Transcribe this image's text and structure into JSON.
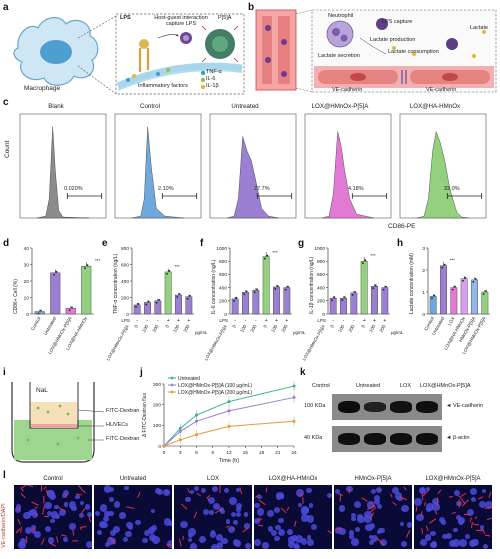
{
  "panels": {
    "a": "a",
    "b": "b",
    "c": "c",
    "d": "d",
    "e": "e",
    "f": "f",
    "g": "g",
    "h": "h",
    "i": "i",
    "j": "j",
    "k": "k",
    "l": "l"
  },
  "panel_a": {
    "cell_label": "Macrophage",
    "interaction_text": "Host-guest interaction capture LPS",
    "lps": "LPS",
    "p5a": "P[5]A",
    "inflammatory": "Inflammatory factors",
    "legend": [
      "TNF-α",
      "IL-6",
      "IL-1β"
    ]
  },
  "panel_b": {
    "lps_capture": "LPS capture",
    "lactate_production": "Lactate production",
    "lactate_consumption": "Lactate consumption",
    "lactate_secretion": "Lactate secretion",
    "lactate": "Lactate",
    "neutrophil": "Neutrophil",
    "vec1": "VE-cadherin",
    "vec2": "VE-cadherin"
  },
  "panel_c": {
    "xlabel": "CD86-PE",
    "ylabel": "Count",
    "groups": [
      {
        "title": "Blank",
        "percent": "0.020%",
        "color": "#8c8c8c"
      },
      {
        "title": "Control",
        "percent": "2.10%",
        "color": "#6fa8dc"
      },
      {
        "title": "Untreated",
        "percent": "27.7%",
        "color": "#9b7fd1"
      },
      {
        "title": "LOX@HMnOx-P[5]A",
        "percent": "4.18%",
        "color": "#e27ad5"
      },
      {
        "title": "LOX@HA-HMnOx",
        "percent": "33.0%",
        "color": "#93d17f"
      }
    ]
  },
  "chart_data": [
    {
      "type": "bar",
      "panel": "d",
      "categories": [
        "Control",
        "Untreated",
        "LOX@HMnOx-P[5]A",
        "LOX@HA-HMnOx"
      ],
      "values": [
        1.5,
        25,
        3.5,
        29
      ],
      "ylabel": "CD86+ Cell (%)",
      "ylim": [
        0,
        40
      ],
      "yticks": [
        0,
        10,
        20,
        30,
        40
      ],
      "significance": "***"
    },
    {
      "type": "bar",
      "panel": "e",
      "categories": [
        "0",
        "100",
        "200",
        "0",
        "100",
        "200"
      ],
      "values": [
        110,
        140,
        160,
        510,
        230,
        210
      ],
      "ylabel": "TNF-α concentration (ng/L)",
      "ylim": [
        0,
        800
      ],
      "yticks": [
        0,
        200,
        400,
        600,
        800
      ],
      "conditions": {
        "lps_label": "LPS",
        "lps": [
          "-",
          "-",
          "-",
          "+",
          "+",
          "+"
        ],
        "drug_label": "LOX@HMnOx-P[5]A",
        "unit": "μg/mL"
      },
      "significance": "***"
    },
    {
      "type": "bar",
      "panel": "f",
      "categories": [
        "0",
        "100",
        "200",
        "0",
        "100",
        "200"
      ],
      "values": [
        230,
        330,
        360,
        870,
        410,
        400
      ],
      "ylabel": "IL-6 concentration (ng/L)",
      "ylim": [
        0,
        1000
      ],
      "yticks": [
        0,
        200,
        400,
        600,
        800,
        1000
      ],
      "conditions": {
        "lps_label": "LPS",
        "lps": [
          "-",
          "-",
          "-",
          "+",
          "+",
          "+"
        ],
        "drug_label": "LOX@HMnOx-P[5]A",
        "unit": "μg/mL"
      },
      "significance": "***"
    },
    {
      "type": "bar",
      "panel": "g",
      "categories": [
        "0",
        "100",
        "200",
        "0",
        "100",
        "200"
      ],
      "values": [
        240,
        240,
        320,
        800,
        420,
        400
      ],
      "ylabel": "IL-1β concentration (ng/L)",
      "ylim": [
        0,
        1000
      ],
      "yticks": [
        0,
        200,
        400,
        600,
        800,
        1000
      ],
      "conditions": {
        "lps_label": "LPS",
        "lps": [
          "-",
          "-",
          "-",
          "+",
          "+",
          "+"
        ],
        "drug_label": "LOX@HMnOx-P[5]A",
        "unit": "μg/mL"
      },
      "significance": "***"
    },
    {
      "type": "bar",
      "panel": "h",
      "categories": [
        "Control",
        "Untreated",
        "LOX",
        "LOX@HA-HMnOx",
        "HMnOx-P[5]A",
        "LOX@HMnOx-P[5]A"
      ],
      "values": [
        0.8,
        2.2,
        1.2,
        1.6,
        1.55,
        1.0
      ],
      "ylabel": "Lactate concentration (mM)",
      "ylim": [
        0,
        3
      ],
      "yticks": [
        0,
        1,
        2,
        3
      ],
      "significance": "***"
    },
    {
      "type": "line",
      "panel": "j",
      "x": [
        0,
        3,
        6,
        12,
        24
      ],
      "series": [
        {
          "name": "Untreated",
          "color": "#3ab48a",
          "values": [
            0,
            85,
            150,
            215,
            290
          ]
        },
        {
          "name": "LOX@HMnOx-P[5]A (100 μg/mL)",
          "color": "#9b7fd1",
          "values": [
            0,
            70,
            120,
            170,
            235
          ]
        },
        {
          "name": "LOX@HMnOx-P[5]A (200 μg/mL)",
          "color": "#e59a3a",
          "values": [
            0,
            30,
            55,
            95,
            120
          ]
        }
      ],
      "xlabel": "Time (h)",
      "ylabel": "Δ FITC-Dextran flux",
      "xlim": [
        0,
        24
      ],
      "ylim": [
        0,
        300
      ],
      "xticks": [
        0,
        3,
        6,
        9,
        12,
        15,
        18,
        21,
        24
      ],
      "yticks": [
        0,
        100,
        200,
        300
      ]
    }
  ],
  "panel_i": {
    "nal": "NaL",
    "top": "FITC-Dextran",
    "mid": "HUVECs",
    "bottom": "FITC-Dextran"
  },
  "panel_k": {
    "lanes": [
      "Control",
      "Untreated",
      "LOX",
      "LOX@HMnOx-P[5]A"
    ],
    "rows": [
      {
        "kda": "100 KDa",
        "protein": "◄ VE-cadherin",
        "intensity": [
          0.95,
          0.55,
          0.85,
          0.9
        ]
      },
      {
        "kda": "40 KDa",
        "protein": "◄ β-actin",
        "intensity": [
          0.9,
          0.9,
          0.9,
          0.9
        ]
      }
    ]
  },
  "panel_l": {
    "ylabel": "VE-cadherin/DAPI",
    "titles": [
      "Control",
      "Untreated",
      "LOX",
      "LOX@HA-HMnOx",
      "HMnOx-P[5]A",
      "LOX@HMnOx-P[5]A"
    ],
    "red_level": [
      0.85,
      0.1,
      0.35,
      0.3,
      0.4,
      0.75
    ]
  }
}
